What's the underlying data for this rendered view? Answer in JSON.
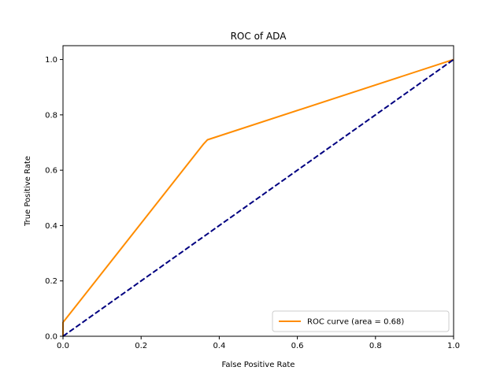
{
  "chart_data": {
    "type": "line",
    "title": "ROC of ADA",
    "xlabel": "False Positive Rate",
    "ylabel": "True Positive Rate",
    "xlim": [
      0,
      1
    ],
    "ylim": [
      0,
      1.05
    ],
    "x_ticks": [
      "0.0",
      "0.2",
      "0.4",
      "0.6",
      "0.8",
      "1.0"
    ],
    "y_ticks": [
      "0.0",
      "0.2",
      "0.4",
      "0.6",
      "0.8",
      "1.0"
    ],
    "grid": false,
    "legend_position": "lower-right",
    "series": [
      {
        "name": "ROC curve (area = 0.68)",
        "color": "#ff8c00",
        "style": "solid",
        "x": [
          0.0,
          0.0,
          0.36,
          0.37,
          1.0
        ],
        "y": [
          0.0,
          0.05,
          0.695,
          0.71,
          1.0
        ]
      },
      {
        "color": "#000080",
        "style": "dashed",
        "x": [
          0.0,
          1.0
        ],
        "y": [
          0.0,
          1.0
        ]
      }
    ]
  }
}
